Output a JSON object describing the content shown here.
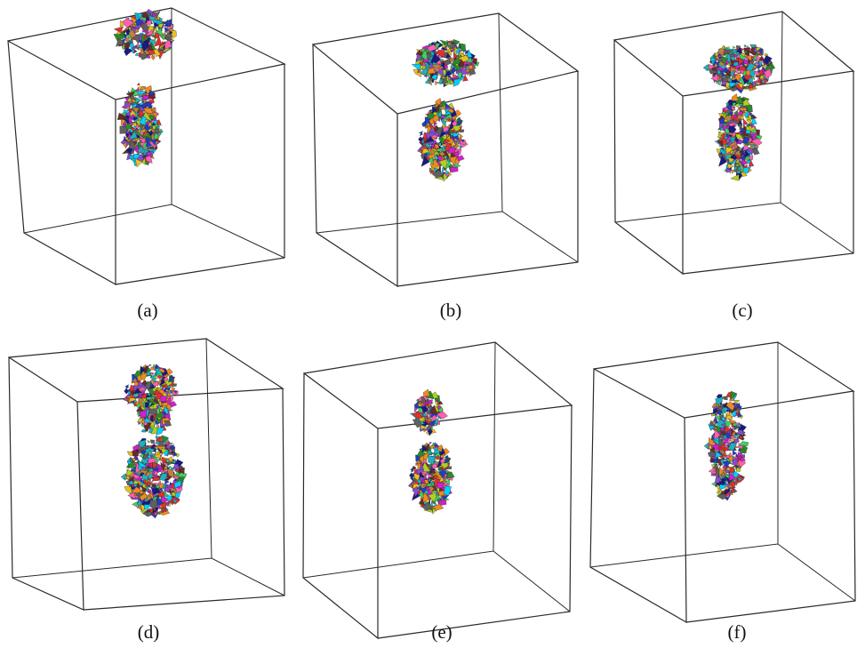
{
  "figure": {
    "panels": [
      {
        "id": "a",
        "label": "(a)"
      },
      {
        "id": "b",
        "label": "(b)"
      },
      {
        "id": "c",
        "label": "(c)"
      },
      {
        "id": "d",
        "label": "(d)"
      },
      {
        "id": "e",
        "label": "(e)"
      },
      {
        "id": "f",
        "label": "(f)"
      }
    ]
  },
  "colors": {
    "edge": "#2a2a2a",
    "palette": [
      "#1f3fbf",
      "#e8c020",
      "#d020d0",
      "#20b0c0",
      "#2a8a2a",
      "#e03030",
      "#8a4ad0",
      "#f08a20",
      "#1a1a80",
      "#40d060",
      "#c08040",
      "#ff60b0",
      "#606060",
      "#00d0ff",
      "#b0d020",
      "#6a2a2a"
    ]
  }
}
